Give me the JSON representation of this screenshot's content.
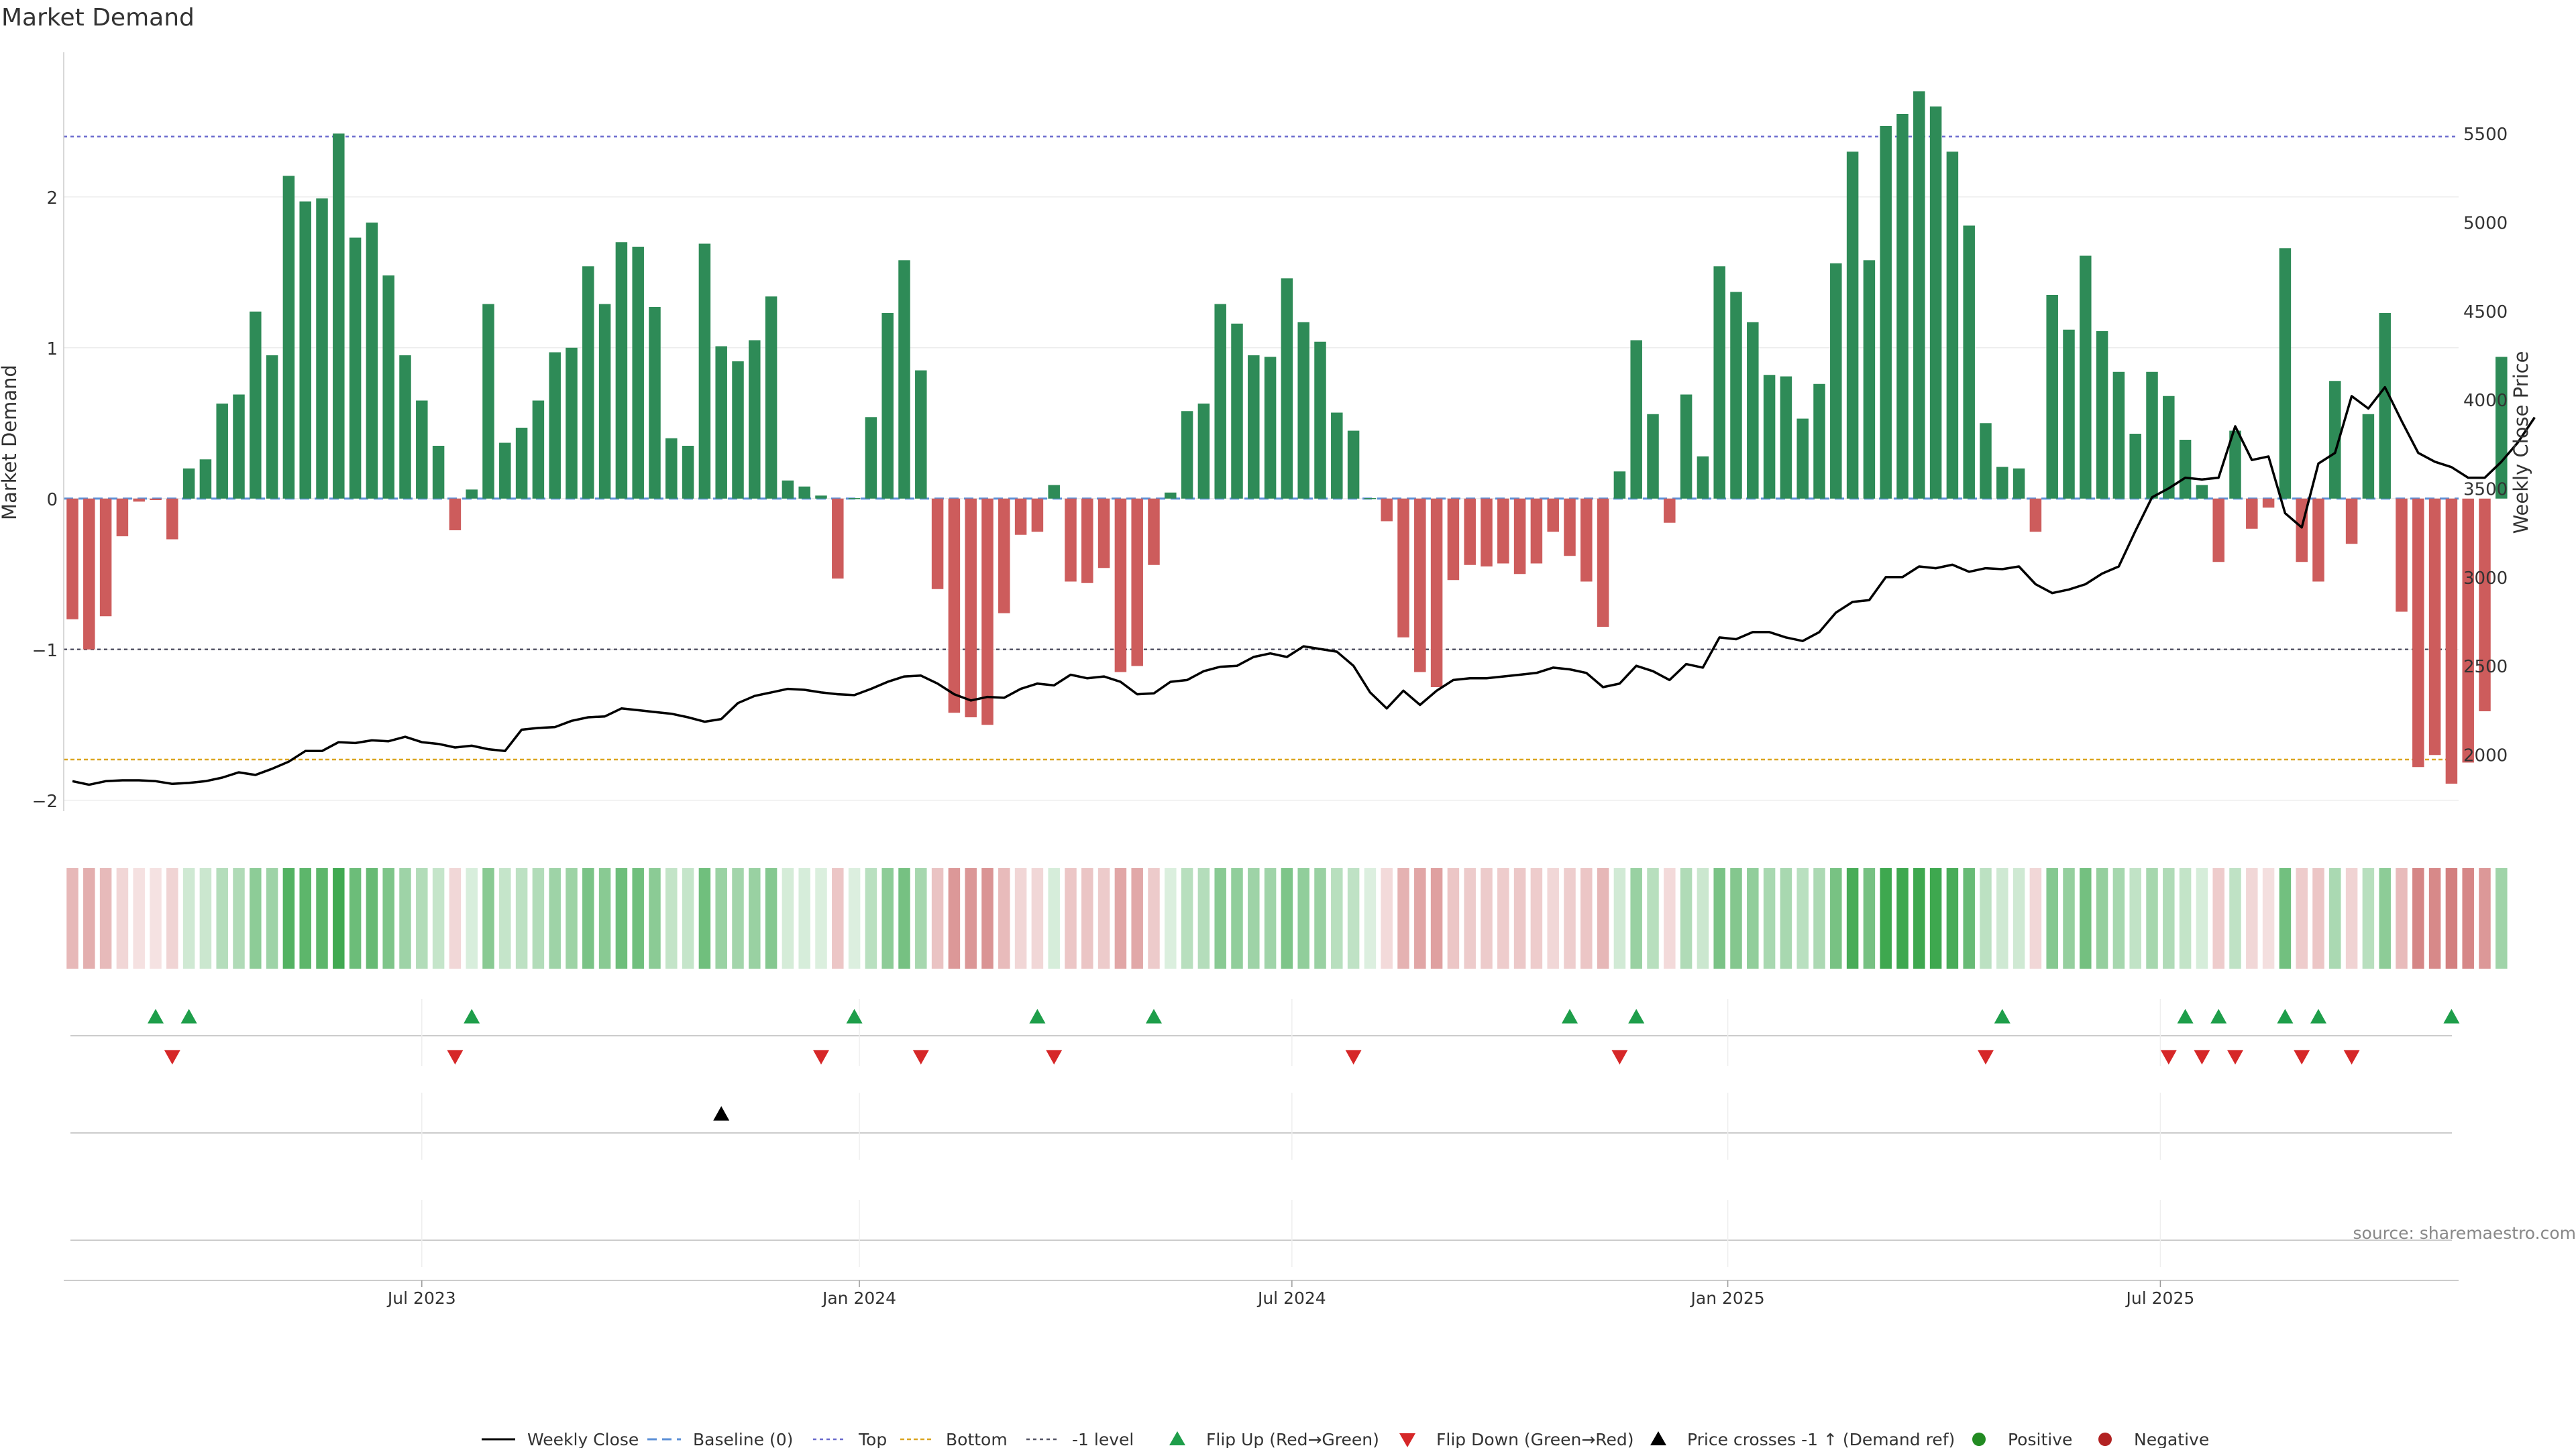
{
  "title": "Market Demand",
  "source": "source: sharemaestro.com",
  "y_left_label": "Market Demand",
  "y_right_label": "Weekly Close Price",
  "y_left_ticks": [
    {
      "v": 2,
      "label": "2"
    },
    {
      "v": 1,
      "label": "1"
    },
    {
      "v": 0,
      "label": "0"
    },
    {
      "v": -1,
      "label": "−1"
    },
    {
      "v": -2,
      "label": "−2"
    }
  ],
  "y_right_ticks": [
    {
      "v": 2000,
      "label": "2000"
    },
    {
      "v": 2500,
      "label": "2500"
    },
    {
      "v": 3000,
      "label": "3000"
    },
    {
      "v": 3500,
      "label": "3500"
    },
    {
      "v": 4000,
      "label": "4000"
    },
    {
      "v": 4500,
      "label": "4500"
    },
    {
      "v": 5000,
      "label": "5000"
    },
    {
      "v": 5500,
      "label": "5500"
    }
  ],
  "x_ticks": [
    {
      "i": 21,
      "label": "Jul 2023"
    },
    {
      "i": 47.3,
      "label": "Jan 2024"
    },
    {
      "i": 73.3,
      "label": "Jul 2024"
    },
    {
      "i": 99.5,
      "label": "Jan 2025"
    },
    {
      "i": 125.5,
      "label": "Jul 2025"
    }
  ],
  "reference_lines": {
    "top": 2.4,
    "bottom": -1.73,
    "minus_one": -1,
    "baseline": 0
  },
  "colors": {
    "positive": "#2e8b57",
    "negative": "#cd5c5c",
    "price": "#000000",
    "top": "#6a6acd",
    "bottom": "#daa520",
    "minus_one": "#555566",
    "baseline": "#5b8fd6",
    "flip_up": "#1e9e4a",
    "flip_down": "#d62728",
    "heat_pos": "#3ea84f",
    "heat_neg": "#c96161"
  },
  "legend": [
    {
      "key": "weekly_close",
      "label": "Weekly Close"
    },
    {
      "key": "baseline",
      "label": "Baseline (0)"
    },
    {
      "key": "top",
      "label": "Top"
    },
    {
      "key": "bottom",
      "label": "Bottom"
    },
    {
      "key": "minus_one",
      "label": "-1 level"
    },
    {
      "key": "flip_up",
      "label": "Flip Up (Red→Green)"
    },
    {
      "key": "flip_down",
      "label": "Flip Down (Green→Red)"
    },
    {
      "key": "price_cross",
      "label": "Price crosses -1 ↑ (Demand ref)"
    },
    {
      "key": "positive",
      "label": "Positive"
    },
    {
      "key": "negative",
      "label": "Negative"
    }
  ],
  "chart_data": {
    "type": "bar",
    "title": "Market Demand",
    "xlabel": "",
    "ylabel": "Market Demand",
    "y2label": "Weekly Close Price",
    "ylim": [
      -2.05,
      2.95
    ],
    "y2lim": [
      1700,
      5950
    ],
    "series": [
      {
        "name": "Market Demand",
        "values": [
          -0.8,
          -1.0,
          -0.78,
          -0.25,
          -0.02,
          -0.01,
          -0.27,
          0.2,
          0.26,
          0.63,
          0.69,
          1.24,
          0.95,
          2.14,
          1.97,
          1.99,
          2.42,
          1.73,
          1.83,
          1.48,
          0.95,
          0.65,
          0.35,
          -0.21,
          0.06,
          1.29,
          0.37,
          0.47,
          0.65,
          0.97,
          1.0,
          1.54,
          1.29,
          1.7,
          1.67,
          1.27,
          0.4,
          0.35,
          1.69,
          1.01,
          0.91,
          1.05,
          1.34,
          0.12,
          0.08,
          0.02,
          -0.53,
          0.0,
          0.54,
          1.23,
          1.58,
          0.85,
          -0.6,
          -1.42,
          -1.45,
          -1.5,
          -0.76,
          -0.24,
          -0.22,
          0.09,
          -0.55,
          -0.56,
          -0.46,
          -1.15,
          -1.11,
          -0.44,
          0.04,
          0.58,
          0.63,
          1.29,
          1.16,
          0.95,
          0.94,
          1.46,
          1.17,
          1.04,
          0.57,
          0.45,
          0.0,
          -0.15,
          -0.92,
          -1.15,
          -1.25,
          -0.54,
          -0.44,
          -0.45,
          -0.43,
          -0.5,
          -0.43,
          -0.22,
          -0.38,
          -0.55,
          -0.85,
          0.18,
          1.05,
          0.56,
          -0.16,
          0.69,
          0.28,
          1.54,
          1.37,
          1.17,
          0.82,
          0.81,
          0.53,
          0.76,
          1.56,
          2.3,
          1.58,
          2.47,
          2.55,
          2.7,
          2.6,
          2.3,
          1.81,
          0.5,
          0.21,
          0.2,
          -0.22,
          1.35,
          1.12,
          1.61,
          1.11,
          0.84,
          0.43,
          0.84,
          0.68,
          0.39,
          0.09,
          -0.42,
          0.45,
          -0.2,
          -0.06,
          1.66,
          -0.42,
          -0.55,
          0.78,
          -0.3,
          0.56,
          1.23,
          -0.75,
          -1.78,
          -1.7,
          -1.89,
          -1.75,
          -1.41,
          0.94
        ]
      },
      {
        "name": "Weekly Close",
        "values": [
          1850,
          1830,
          1850,
          1855,
          1855,
          1850,
          1835,
          1840,
          1850,
          1870,
          1900,
          1885,
          1920,
          1960,
          2020,
          2020,
          2070,
          2065,
          2080,
          2075,
          2100,
          2070,
          2060,
          2040,
          2050,
          2030,
          2020,
          2140,
          2150,
          2155,
          2190,
          2210,
          2215,
          2260,
          2250,
          2240,
          2230,
          2210,
          2185,
          2200,
          2290,
          2330,
          2350,
          2370,
          2365,
          2350,
          2340,
          2335,
          2370,
          2410,
          2440,
          2445,
          2400,
          2340,
          2305,
          2325,
          2320,
          2370,
          2400,
          2390,
          2450,
          2430,
          2440,
          2410,
          2340,
          2345,
          2410,
          2420,
          2470,
          2495,
          2500,
          2550,
          2570,
          2550,
          2610,
          2595,
          2580,
          2500,
          2350,
          2260,
          2360,
          2280,
          2360,
          2420,
          2430,
          2430,
          2440,
          2450,
          2460,
          2490,
          2480,
          2460,
          2380,
          2400,
          2500,
          2470,
          2420,
          2510,
          2490,
          2660,
          2650,
          2690,
          2690,
          2660,
          2640,
          2690,
          2800,
          2860,
          2870,
          3000,
          3000,
          3060,
          3050,
          3070,
          3030,
          3050,
          3045,
          3060,
          2960,
          2910,
          2930,
          2960,
          3020,
          3060,
          3260,
          3450,
          3500,
          3560,
          3550,
          3560,
          3850,
          3660,
          3680,
          3360,
          3280,
          3640,
          3700,
          4020,
          3950,
          4070,
          3880,
          3700,
          3650,
          3620,
          3560,
          3560,
          3650,
          3760,
          3900
        ]
      }
    ],
    "flip_up_indices": [
      5,
      7,
      24,
      47,
      58,
      65,
      90,
      94,
      116,
      127,
      129,
      133,
      135,
      143
    ],
    "flip_down_indices": [
      6,
      23,
      45,
      51,
      59,
      77,
      93,
      115,
      126,
      128,
      130,
      134,
      137
    ],
    "price_cross_indices": [
      39
    ]
  }
}
